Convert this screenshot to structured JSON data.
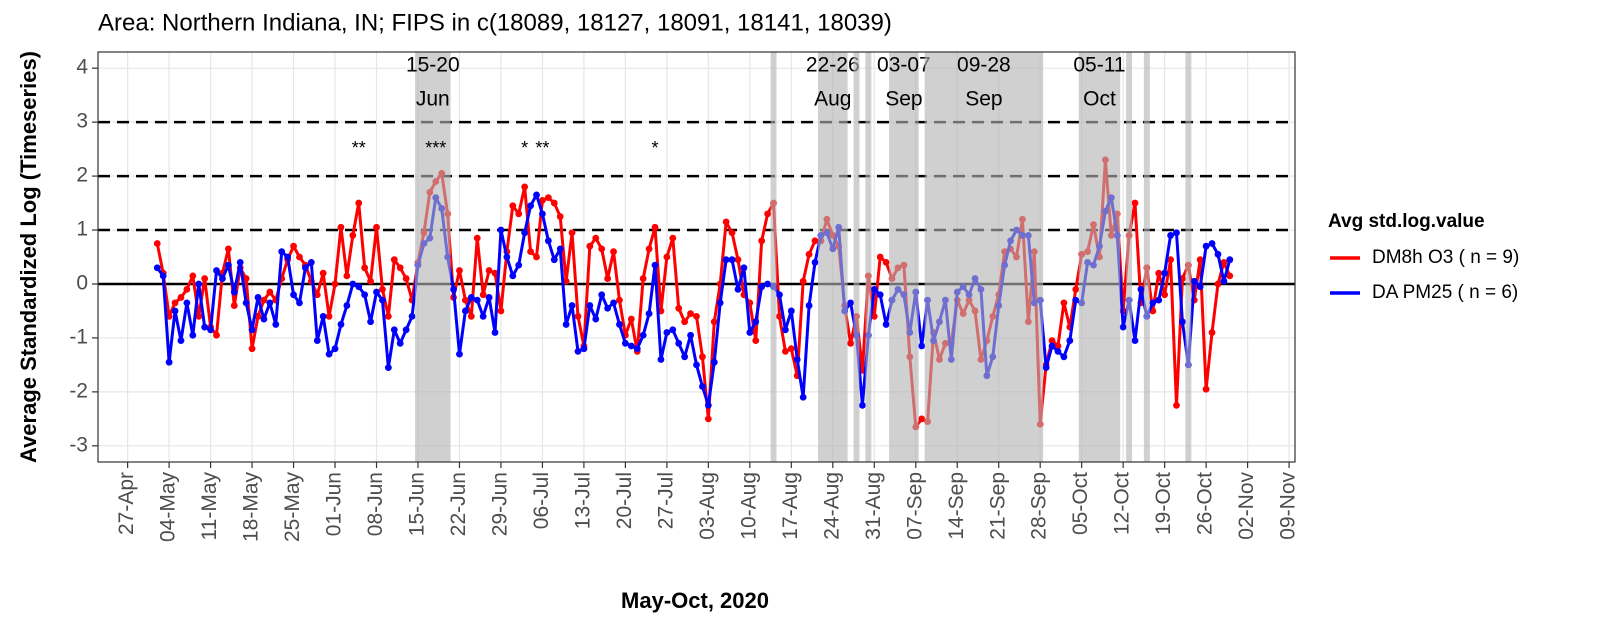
{
  "chart_data": {
    "type": "line",
    "title": "Area: Northern Indiana, IN; FIPS in c(18089, 18127, 18091, 18141, 18039)",
    "x_label": "May-Oct, 2020",
    "y_label": "Average Standardized Log (Timeseries)",
    "legend_title": "Avg std.log.value",
    "legend_position": "right",
    "grid": true,
    "xlim": [
      "22-Apr",
      "10-Nov"
    ],
    "xticks": [
      "27-Apr",
      "04-May",
      "11-May",
      "18-May",
      "25-May",
      "01-Jun",
      "08-Jun",
      "15-Jun",
      "22-Jun",
      "29-Jun",
      "06-Jul",
      "13-Jul",
      "20-Jul",
      "27-Jul",
      "03-Aug",
      "10-Aug",
      "17-Aug",
      "24-Aug",
      "31-Aug",
      "07-Sep",
      "14-Sep",
      "21-Sep",
      "28-Sep",
      "05-Oct",
      "12-Oct",
      "19-Oct",
      "26-Oct",
      "02-Nov",
      "09-Nov"
    ],
    "ylim": [
      -3.3,
      4.3
    ],
    "yticks": [
      -3,
      -2,
      -1,
      0,
      1,
      2,
      3,
      4
    ],
    "reference_line": 0,
    "dashed_lines": [
      1,
      2,
      3
    ],
    "x": [
      "02-May",
      "03-May",
      "04-May",
      "05-May",
      "06-May",
      "07-May",
      "08-May",
      "09-May",
      "10-May",
      "11-May",
      "12-May",
      "13-May",
      "14-May",
      "15-May",
      "16-May",
      "17-May",
      "18-May",
      "19-May",
      "20-May",
      "21-May",
      "22-May",
      "23-May",
      "24-May",
      "25-May",
      "26-May",
      "27-May",
      "28-May",
      "29-May",
      "30-May",
      "31-May",
      "01-Jun",
      "02-Jun",
      "03-Jun",
      "04-Jun",
      "05-Jun",
      "06-Jun",
      "07-Jun",
      "08-Jun",
      "09-Jun",
      "10-Jun",
      "11-Jun",
      "12-Jun",
      "13-Jun",
      "14-Jun",
      "15-Jun",
      "16-Jun",
      "17-Jun",
      "18-Jun",
      "19-Jun",
      "20-Jun",
      "21-Jun",
      "22-Jun",
      "23-Jun",
      "24-Jun",
      "25-Jun",
      "26-Jun",
      "27-Jun",
      "28-Jun",
      "29-Jun",
      "30-Jun",
      "01-Jul",
      "02-Jul",
      "03-Jul",
      "04-Jul",
      "05-Jul",
      "06-Jul",
      "07-Jul",
      "08-Jul",
      "09-Jul",
      "10-Jul",
      "11-Jul",
      "12-Jul",
      "13-Jul",
      "14-Jul",
      "15-Jul",
      "16-Jul",
      "17-Jul",
      "18-Jul",
      "19-Jul",
      "20-Jul",
      "21-Jul",
      "22-Jul",
      "23-Jul",
      "24-Jul",
      "25-Jul",
      "26-Jul",
      "27-Jul",
      "28-Jul",
      "29-Jul",
      "30-Jul",
      "31-Jul",
      "01-Aug",
      "02-Aug",
      "03-Aug",
      "04-Aug",
      "05-Aug",
      "06-Aug",
      "07-Aug",
      "08-Aug",
      "09-Aug",
      "10-Aug",
      "11-Aug",
      "12-Aug",
      "13-Aug",
      "14-Aug",
      "15-Aug",
      "16-Aug",
      "17-Aug",
      "18-Aug",
      "19-Aug",
      "20-Aug",
      "21-Aug",
      "22-Aug",
      "23-Aug",
      "24-Aug",
      "25-Aug",
      "26-Aug",
      "27-Aug",
      "28-Aug",
      "29-Aug",
      "30-Aug",
      "31-Aug",
      "01-Sep",
      "02-Sep",
      "03-Sep",
      "04-Sep",
      "05-Sep",
      "06-Sep",
      "07-Sep",
      "08-Sep",
      "09-Sep",
      "10-Sep",
      "11-Sep",
      "12-Sep",
      "13-Sep",
      "14-Sep",
      "15-Sep",
      "16-Sep",
      "17-Sep",
      "18-Sep",
      "19-Sep",
      "20-Sep",
      "21-Sep",
      "22-Sep",
      "23-Sep",
      "24-Sep",
      "25-Sep",
      "26-Sep",
      "27-Sep",
      "28-Sep",
      "29-Sep",
      "30-Sep",
      "01-Oct",
      "02-Oct",
      "03-Oct",
      "04-Oct",
      "05-Oct",
      "06-Oct",
      "07-Oct",
      "08-Oct",
      "09-Oct",
      "10-Oct",
      "11-Oct",
      "12-Oct",
      "13-Oct",
      "14-Oct",
      "15-Oct",
      "16-Oct",
      "17-Oct",
      "18-Oct",
      "19-Oct",
      "20-Oct",
      "21-Oct",
      "22-Oct",
      "23-Oct",
      "24-Oct",
      "25-Oct",
      "26-Oct",
      "27-Oct",
      "28-Oct",
      "29-Oct",
      "30-Oct"
    ],
    "series": [
      {
        "name": "DM8h O3 ( n = 9)",
        "color": "#ff0000",
        "values": [
          0.75,
          0.2,
          -0.6,
          -0.35,
          -0.25,
          -0.1,
          0.15,
          -0.6,
          0.1,
          -0.8,
          -0.95,
          0.2,
          0.65,
          -0.4,
          0.3,
          0.1,
          -1.2,
          -0.6,
          -0.3,
          -0.15,
          -0.3,
          0.1,
          0.45,
          0.7,
          0.5,
          0.35,
          0.05,
          -0.2,
          0.2,
          -0.6,
          0.0,
          1.05,
          0.15,
          0.9,
          1.5,
          0.3,
          0.05,
          1.05,
          -0.1,
          -0.6,
          0.45,
          0.3,
          0.1,
          -0.3,
          0.4,
          0.95,
          1.7,
          1.9,
          2.05,
          1.3,
          -0.25,
          0.25,
          -0.3,
          -0.6,
          0.85,
          -0.2,
          0.25,
          0.2,
          -0.5,
          0.6,
          1.45,
          1.3,
          1.8,
          0.6,
          0.5,
          1.55,
          1.6,
          1.5,
          1.25,
          0.05,
          0.95,
          -0.6,
          -1.15,
          0.7,
          0.85,
          0.65,
          0.1,
          0.6,
          -0.3,
          -0.95,
          -0.65,
          -1.25,
          0.1,
          0.65,
          1.05,
          -0.5,
          0.5,
          0.85,
          -0.45,
          -0.7,
          -0.55,
          -0.6,
          -1.35,
          -2.5,
          -0.7,
          0.0,
          1.15,
          0.95,
          0.45,
          -0.2,
          -0.35,
          -1.05,
          0.8,
          1.3,
          1.5,
          -0.6,
          -1.25,
          -1.2,
          -1.7,
          0.05,
          0.55,
          0.8,
          0.8,
          1.2,
          0.9,
          0.7,
          -0.4,
          -1.1,
          -0.6,
          -1.6,
          0.15,
          -0.6,
          0.5,
          0.4,
          0.1,
          0.3,
          0.35,
          -1.35,
          -2.65,
          -2.5,
          -2.55,
          -0.9,
          -1.4,
          -1.1,
          -1.1,
          -0.3,
          -0.55,
          -0.3,
          -0.5,
          -1.4,
          -1.05,
          -0.6,
          -0.2,
          0.6,
          0.65,
          0.5,
          1.2,
          -0.7,
          0.6,
          -2.6,
          -1.5,
          -1.05,
          -1.15,
          -0.35,
          -0.8,
          -0.1,
          0.55,
          0.6,
          1.1,
          0.5,
          2.3,
          0.9,
          1.3,
          -0.5,
          0.9,
          1.5,
          -0.35,
          0.3,
          -0.5,
          0.2,
          -0.2,
          0.45,
          -2.25,
          0.1,
          0.35,
          -0.3,
          0.45,
          -1.95,
          -0.9,
          0.0,
          0.4,
          0.15
        ]
      },
      {
        "name": "DA PM25 ( n = 6)",
        "color": "#0000ff",
        "values": [
          0.3,
          0.15,
          -1.45,
          -0.5,
          -1.05,
          -0.35,
          -0.95,
          0.0,
          -0.8,
          -0.85,
          0.25,
          0.1,
          0.35,
          -0.15,
          0.4,
          -0.35,
          -0.85,
          -0.25,
          -0.65,
          -0.35,
          -0.75,
          0.6,
          0.5,
          -0.2,
          -0.35,
          0.3,
          0.4,
          -1.05,
          -0.6,
          -1.3,
          -1.2,
          -0.75,
          -0.4,
          0.0,
          -0.05,
          -0.2,
          -0.7,
          -0.15,
          -0.3,
          -1.55,
          -0.85,
          -1.1,
          -0.85,
          -0.6,
          0.35,
          0.75,
          0.85,
          1.6,
          1.4,
          0.5,
          -0.1,
          -1.3,
          -0.5,
          -0.25,
          -0.3,
          -0.6,
          -0.25,
          -0.9,
          1.0,
          0.5,
          0.15,
          0.35,
          0.95,
          1.45,
          1.65,
          1.3,
          0.8,
          0.45,
          0.65,
          -0.75,
          -0.4,
          -1.25,
          -1.2,
          -0.4,
          -0.65,
          -0.2,
          -0.45,
          -0.35,
          -0.75,
          -1.1,
          -1.15,
          -1.2,
          -0.95,
          -0.55,
          0.35,
          -1.4,
          -0.9,
          -0.85,
          -1.1,
          -1.35,
          -0.95,
          -1.5,
          -1.9,
          -2.25,
          -1.45,
          -0.35,
          0.45,
          0.45,
          -0.1,
          0.3,
          -0.9,
          -0.7,
          -0.05,
          0.0,
          -0.05,
          -0.2,
          -0.85,
          -0.5,
          -1.4,
          -2.1,
          -0.4,
          0.4,
          0.9,
          0.95,
          0.65,
          1.05,
          -0.5,
          -0.35,
          -0.95,
          -2.25,
          -0.95,
          -0.1,
          -0.2,
          -0.75,
          -0.3,
          -0.1,
          -0.2,
          -0.9,
          -0.15,
          -1.15,
          -0.3,
          -1.05,
          -0.7,
          -0.3,
          -1.4,
          -0.15,
          -0.05,
          -0.2,
          0.1,
          -0.1,
          -1.7,
          -1.35,
          -0.4,
          0.35,
          0.8,
          1.0,
          0.9,
          0.9,
          -0.35,
          -0.3,
          -1.55,
          -1.15,
          -1.25,
          -1.35,
          -1.05,
          -0.3,
          -0.35,
          0.4,
          0.35,
          0.7,
          1.35,
          1.6,
          0.9,
          -0.8,
          -0.3,
          -1.05,
          -0.1,
          -0.6,
          -0.35,
          -0.3,
          0.2,
          0.9,
          0.95,
          -0.7,
          -1.5,
          0.05,
          -0.05,
          0.7,
          0.75,
          0.55,
          0.05,
          0.45
        ]
      }
    ],
    "shaded_periods": [
      {
        "start": "15-Jun",
        "end": "20-Jun",
        "label": [
          "15-20",
          "Jun"
        ]
      },
      {
        "start": "14-Aug",
        "end": "14-Aug"
      },
      {
        "start": "22-Aug",
        "end": "26-Aug",
        "label": [
          "22-26",
          "Aug"
        ]
      },
      {
        "start": "28-Aug",
        "end": "28-Aug"
      },
      {
        "start": "30-Aug",
        "end": "30-Aug"
      },
      {
        "start": "03-Sep",
        "end": "07-Sep",
        "label": [
          "03-07",
          "Sep"
        ]
      },
      {
        "start": "09-Sep",
        "end": "28-Sep",
        "label": [
          "09-28",
          "Sep"
        ]
      },
      {
        "start": "05-Oct",
        "end": "11-Oct",
        "label": [
          "05-11",
          "Oct"
        ]
      },
      {
        "start": "13-Oct",
        "end": "13-Oct"
      },
      {
        "start": "16-Oct",
        "end": "16-Oct"
      },
      {
        "start": "23-Oct",
        "end": "23-Oct"
      }
    ],
    "annotations": [
      {
        "text": "**",
        "x": "05-Jun",
        "y": 2.5
      },
      {
        "text": "***",
        "x": "18-Jun",
        "y": 2.5
      },
      {
        "text": "*",
        "x": "03-Jul",
        "y": 2.5
      },
      {
        "text": "**",
        "x": "06-Jul",
        "y": 2.5
      },
      {
        "text": "*",
        "x": "25-Jul",
        "y": 2.5
      }
    ]
  }
}
